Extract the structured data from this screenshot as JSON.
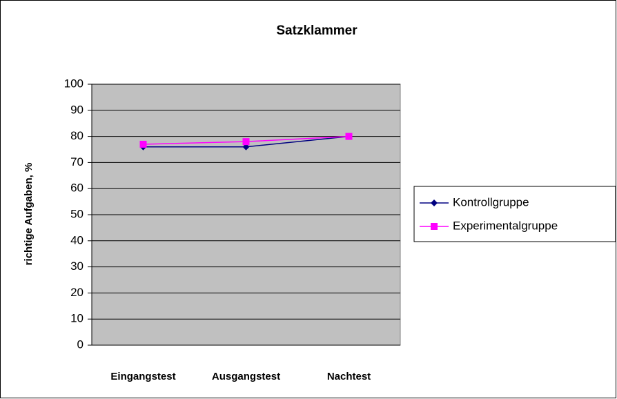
{
  "chart_data": {
    "type": "line",
    "title": "Satzklammer",
    "y_label": "richtige Aufgaben, %",
    "categories": [
      "Eingangstest",
      "Ausgangstest",
      "Nachtest"
    ],
    "series": [
      {
        "name": "Kontrollgruppe",
        "color": "#000080",
        "marker": "diamond",
        "values": [
          76,
          76,
          80
        ]
      },
      {
        "name": "Experimentalgruppe",
        "color": "#ff00ff",
        "marker": "square",
        "values": [
          77,
          78,
          80
        ]
      }
    ],
    "ylim": [
      0,
      100
    ],
    "yticks": [
      0,
      10,
      20,
      30,
      40,
      50,
      60,
      70,
      80,
      90,
      100
    ],
    "grid": true,
    "legend": "right",
    "plot_background": "#c0c0c0"
  }
}
